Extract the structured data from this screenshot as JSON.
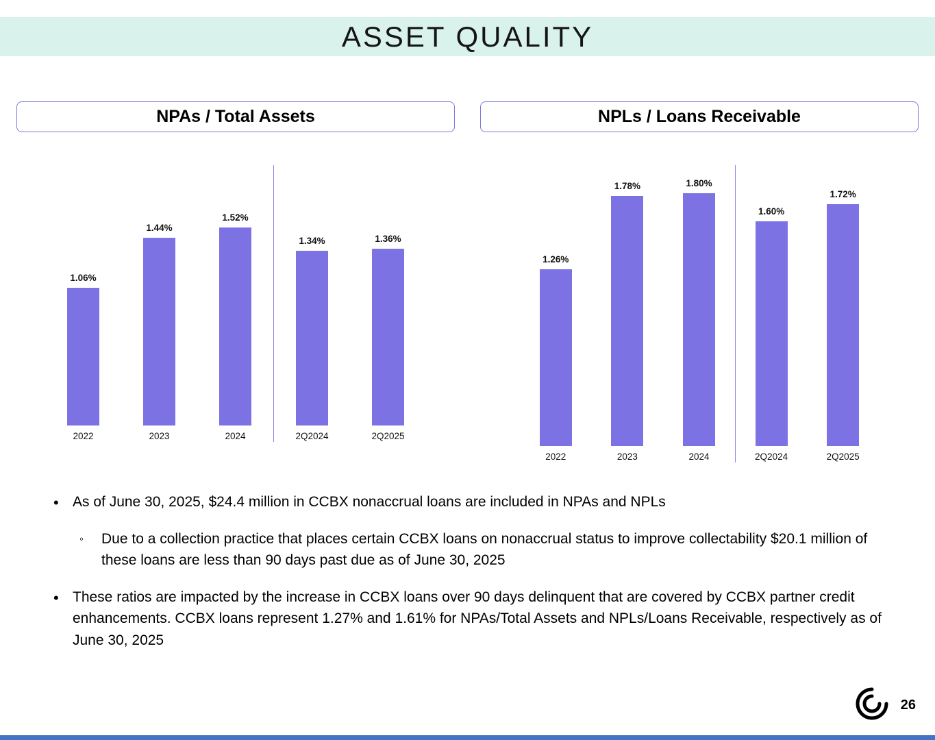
{
  "title": "ASSET QUALITY",
  "page_number": "26",
  "colors": {
    "banner_bg": "#d9f3ec",
    "bar": "#7d72e4",
    "box_border": "#7878e0",
    "divider": "#8a84e8",
    "bottom_line": "#4472c4"
  },
  "icons": {
    "logo": "swirl-spiral-logo"
  },
  "chart_data": [
    {
      "type": "bar",
      "title": "NPAs / Total Assets",
      "categories": [
        "2022",
        "2023",
        "2024",
        "2Q2024",
        "2Q2025"
      ],
      "values": [
        1.06,
        1.44,
        1.52,
        1.34,
        1.36
      ],
      "labels": [
        "1.06%",
        "1.44%",
        "1.52%",
        "1.34%",
        "1.36%"
      ],
      "divider_after_index": 2,
      "ylim": [
        0,
        2.0
      ],
      "grid": false,
      "legend": "none"
    },
    {
      "type": "bar",
      "title": "NPLs / Loans Receivable",
      "categories": [
        "2022",
        "2023",
        "2024",
        "2Q2024",
        "2Q2025"
      ],
      "values": [
        1.26,
        1.78,
        1.8,
        1.6,
        1.72
      ],
      "labels": [
        "1.26%",
        "1.78%",
        "1.80%",
        "1.60%",
        "1.72%"
      ],
      "divider_after_index": 2,
      "ylim": [
        0,
        2.0
      ],
      "grid": false,
      "legend": "none"
    }
  ],
  "bullets": [
    {
      "level": 1,
      "text": "As of June 30, 2025, $24.4 million in CCBX nonaccrual loans are included in NPAs and NPLs"
    },
    {
      "level": 2,
      "text": "Due to a collection practice that places certain CCBX loans on nonaccrual status to improve collectability $20.1 million of these loans are less than 90 days past due as of June 30, 2025"
    },
    {
      "level": 1,
      "text": "These ratios are impacted by the increase in CCBX loans over 90 days delinquent that are covered by CCBX partner credit enhancements. CCBX loans represent 1.27% and 1.61% for NPAs/Total Assets and NPLs/Loans Receivable, respectively as of June 30, 2025"
    }
  ]
}
